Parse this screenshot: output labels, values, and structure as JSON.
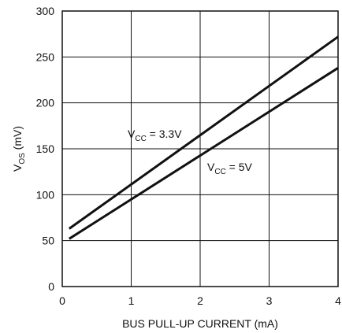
{
  "chart_data": {
    "type": "line",
    "title": "",
    "xlabel": "BUS PULL-UP CURRENT (mA)",
    "ylabel": {
      "main": "V",
      "sub": "OS",
      "unit": " (mV)"
    },
    "xlim": [
      0,
      4
    ],
    "ylim": [
      0,
      300
    ],
    "xticks": [
      "0",
      "1",
      "2",
      "3",
      "4"
    ],
    "yticks": [
      "0",
      "50",
      "100",
      "150",
      "200",
      "250",
      "300"
    ],
    "grid": true,
    "legend": "none",
    "series": [
      {
        "label_main": "V",
        "label_sub": "CC",
        "label_value": " = 3.3V",
        "color": "#111111",
        "x": [
          0.1,
          4.0
        ],
        "y": [
          63,
          272
        ]
      },
      {
        "label_main": "V",
        "label_sub": "CC",
        "label_value": " = 5V",
        "color": "#111111",
        "x": [
          0.1,
          4.0
        ],
        "y": [
          52,
          238
        ]
      }
    ]
  }
}
